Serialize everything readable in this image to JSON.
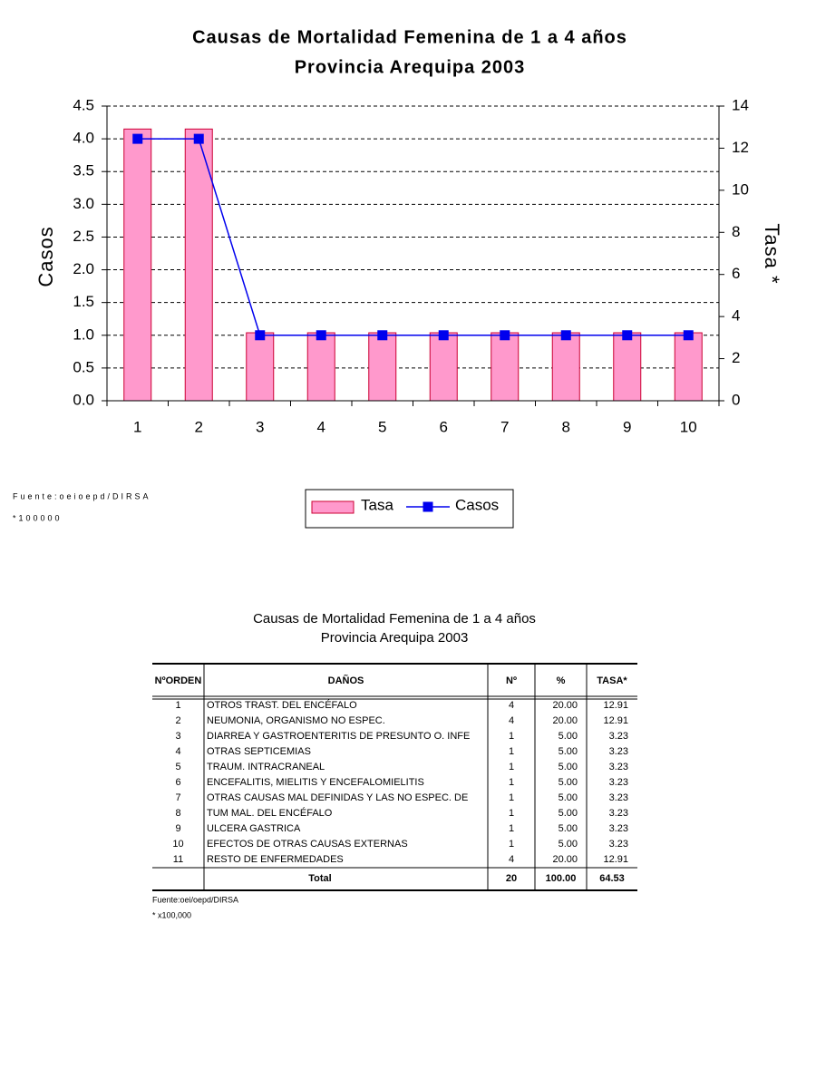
{
  "chart_data": {
    "type": "bar-line",
    "title": "Causas de Mortalidad Femenina de 1 a 4 años",
    "subtitle": "Provincia Arequipa 2003",
    "y_label": "Casos",
    "y2_label": "Tasa *",
    "categories": [
      "1",
      "2",
      "3",
      "4",
      "5",
      "6",
      "7",
      "8",
      "9",
      "10"
    ],
    "series": [
      {
        "name": "Tasa",
        "type": "bar",
        "axis": "y2",
        "color": "#ff99cc",
        "values": [
          12.91,
          12.91,
          3.23,
          3.23,
          3.23,
          3.23,
          3.23,
          3.23,
          3.23,
          3.23
        ]
      },
      {
        "name": "Casos",
        "type": "line",
        "axis": "y",
        "color": "#0000ee",
        "values": [
          4,
          4,
          1,
          1,
          1,
          1,
          1,
          1,
          1,
          1
        ]
      }
    ],
    "ylim": [
      0,
      4.5
    ],
    "yticks": [
      {
        "value": 0,
        "label": "0.0"
      },
      0.5,
      {
        "value": 1,
        "label": "1.0"
      },
      1.5,
      {
        "value": 2,
        "label": "2.0"
      },
      2.5,
      {
        "value": 3,
        "label": "3.0"
      },
      3.5,
      {
        "value": 4,
        "label": "4.0"
      },
      4.5
    ],
    "y2lim": [
      0,
      14
    ],
    "y2ticks": [
      0,
      2,
      4,
      6,
      8,
      10,
      12,
      14
    ],
    "grid": true,
    "legend": "bottom",
    "notes": [
      "Fuente:oeioepd/DIRSA",
      "*100000"
    ]
  },
  "table": {
    "title": "Causas de Mortalidad Femenina de 1 a 4 años",
    "subtitle": "Provincia Arequipa 2003",
    "header": [
      "NºORDEN",
      "DAÑOS",
      "Nº",
      "%",
      "TASA*"
    ],
    "rows": [
      [
        "1",
        "OTROS TRAST. DEL ENCÉFALO",
        "4",
        "20.00",
        "12.91"
      ],
      [
        "2",
        "NEUMONIA, ORGANISMO NO ESPEC.",
        "4",
        "20.00",
        "12.91"
      ],
      [
        "3",
        "DIARREA Y GASTROENTERITIS DE PRESUNTO O. INFE",
        "1",
        "5.00",
        "3.23"
      ],
      [
        "4",
        "OTRAS SEPTICEMIAS",
        "1",
        "5.00",
        "3.23"
      ],
      [
        "5",
        "TRAUM. INTRACRANEAL",
        "1",
        "5.00",
        "3.23"
      ],
      [
        "6",
        "ENCEFALITIS, MIELITIS Y ENCEFALOMIELITIS",
        "1",
        "5.00",
        "3.23"
      ],
      [
        "7",
        "OTRAS CAUSAS MAL DEFINIDAS Y LAS NO ESPEC. DE",
        "1",
        "5.00",
        "3.23"
      ],
      [
        "8",
        "TUM MAL. DEL ENCÉFALO",
        "1",
        "5.00",
        "3.23"
      ],
      [
        "9",
        "ULCERA GASTRICA",
        "1",
        "5.00",
        "3.23"
      ],
      [
        "10",
        "EFECTOS DE OTRAS CAUSAS EXTERNAS",
        "1",
        "5.00",
        "3.23"
      ],
      [
        "11",
        "RESTO DE ENFERMEDADES",
        "4",
        "20.00",
        "12.91"
      ]
    ],
    "total": [
      "Total",
      "20",
      "100.00",
      "64.53"
    ],
    "notes": [
      "Fuente:oei/oepd/DIRSA",
      "* x100,000"
    ]
  }
}
